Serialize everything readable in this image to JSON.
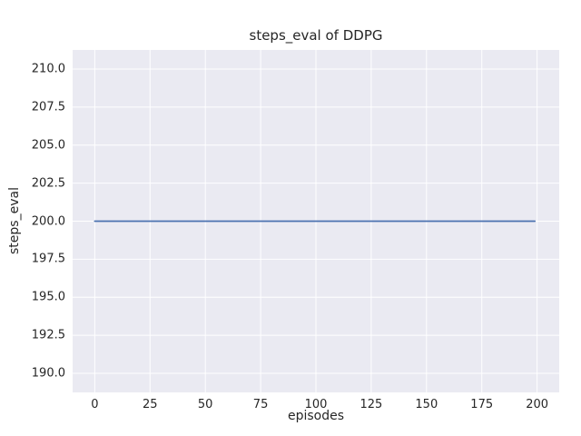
{
  "chart_data": {
    "type": "line",
    "title": "steps_eval of DDPG",
    "xlabel": "episodes",
    "ylabel": "steps_eval",
    "xlim": [
      -10,
      210
    ],
    "ylim": [
      188.75,
      211.25
    ],
    "xticks": [
      0,
      25,
      50,
      75,
      100,
      125,
      150,
      175,
      200
    ],
    "xtick_labels": [
      "0",
      "25",
      "50",
      "75",
      "100",
      "125",
      "150",
      "175",
      "200"
    ],
    "yticks": [
      190.0,
      192.5,
      195.0,
      197.5,
      200.0,
      202.5,
      205.0,
      207.5,
      210.0
    ],
    "ytick_labels": [
      "190.0",
      "192.5",
      "195.0",
      "197.5",
      "200.0",
      "202.5",
      "205.0",
      "207.5",
      "210.0"
    ],
    "grid": true,
    "legend": null,
    "series": [
      {
        "name": "DDPG",
        "x": [
          0,
          199
        ],
        "y": [
          200,
          200
        ],
        "color": "#4c72b0"
      }
    ],
    "colors": {
      "plot_background": "#eaeaf2",
      "figure_background": "#ffffff",
      "gridline": "#ffffff",
      "text": "#262626",
      "line": "#4c72b0"
    }
  }
}
